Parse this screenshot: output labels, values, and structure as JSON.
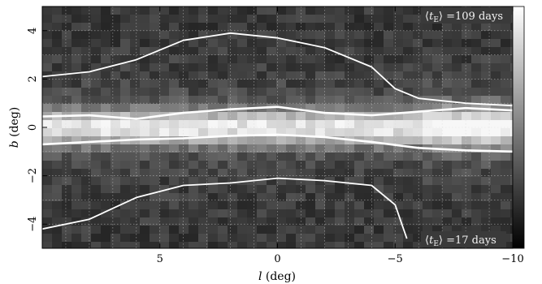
{
  "chart_data": {
    "type": "heatmap",
    "xlabel_var": "l",
    "xlabel_unit": " (deg)",
    "ylabel_var": "b",
    "ylabel_unit": " (deg)",
    "xlim": [
      10,
      -10
    ],
    "ylim": [
      -5,
      5
    ],
    "x_ticks": [
      5,
      0,
      -5,
      -10
    ],
    "x_tick_labels": [
      "5",
      "0",
      "−5",
      "−10"
    ],
    "y_ticks": [
      -4,
      -2,
      0,
      2,
      4
    ],
    "y_tick_labels": [
      "−4",
      "−2",
      "0",
      "2",
      "4"
    ],
    "grid": true,
    "grid_style": "dotted",
    "colorscale": "grayscale, white = longest mean timescale, black = shortest",
    "colorbar_top_label_parts": [
      "⟨",
      "t",
      "E",
      "⟩",
      " =109 days"
    ],
    "colorbar_bottom_label_parts": [
      "⟨",
      "t",
      "E",
      "⟩",
      " =17 days"
    ],
    "colorbar_max_days": 109,
    "colorbar_min_days": 17,
    "contours": [
      {
        "level": "outer",
        "color": "#ffffff",
        "points": [
          [
            10,
            2.1
          ],
          [
            8,
            2.3
          ],
          [
            6,
            2.8
          ],
          [
            4,
            3.6
          ],
          [
            2,
            3.9
          ],
          [
            0,
            3.7
          ],
          [
            -2,
            3.3
          ],
          [
            -4,
            2.5
          ],
          [
            -5,
            1.6
          ],
          [
            -6,
            1.2
          ],
          [
            -8,
            1.0
          ],
          [
            -10,
            0.9
          ]
        ]
      },
      {
        "level": "outer",
        "color": "#ffffff",
        "points": [
          [
            10,
            -4.2
          ],
          [
            8,
            -3.8
          ],
          [
            6,
            -2.9
          ],
          [
            4,
            -2.4
          ],
          [
            2,
            -2.3
          ],
          [
            0,
            -2.1
          ],
          [
            -2,
            -2.2
          ],
          [
            -4,
            -2.4
          ],
          [
            -5,
            -3.2
          ],
          [
            -5.5,
            -4.6
          ]
        ]
      },
      {
        "level": "inner",
        "color": "#ffffff",
        "points": [
          [
            10,
            0.45
          ],
          [
            8,
            0.5
          ],
          [
            6,
            0.35
          ],
          [
            4,
            0.6
          ],
          [
            2,
            0.75
          ],
          [
            0,
            0.85
          ],
          [
            -2,
            0.6
          ],
          [
            -4,
            0.5
          ],
          [
            -6,
            0.65
          ],
          [
            -8,
            0.8
          ],
          [
            -10,
            0.7
          ]
        ]
      },
      {
        "level": "inner",
        "color": "#ffffff",
        "points": [
          [
            10,
            -0.7
          ],
          [
            8,
            -0.6
          ],
          [
            6,
            -0.5
          ],
          [
            4,
            -0.45
          ],
          [
            2,
            -0.35
          ],
          [
            0,
            -0.3
          ],
          [
            -2,
            -0.4
          ],
          [
            -4,
            -0.6
          ],
          [
            -6,
            -0.85
          ],
          [
            -8,
            -0.95
          ],
          [
            -10,
            -1.0
          ]
        ]
      }
    ]
  }
}
